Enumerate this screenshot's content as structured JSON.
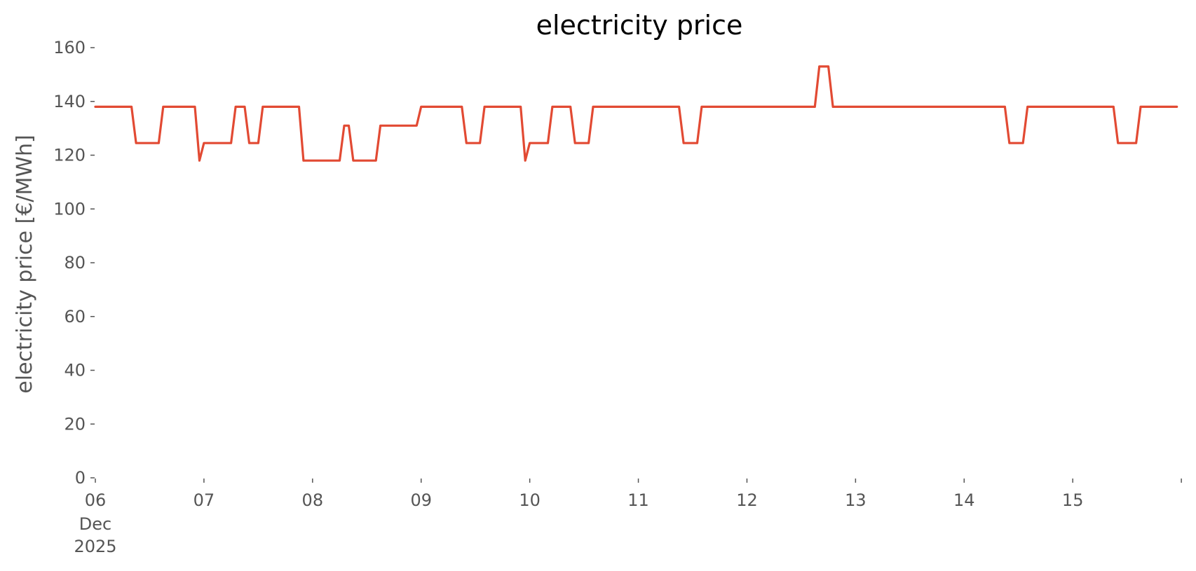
{
  "chart_data": {
    "type": "line",
    "title": "electricity price",
    "xlabel": "",
    "ylabel": "electricity price [€/MWh]",
    "ylim": [
      0,
      160
    ],
    "yticks": [
      0,
      20,
      40,
      60,
      80,
      100,
      120,
      140,
      160
    ],
    "xlim": [
      "2025-12-06 00:00",
      "2025-12-15 23:59"
    ],
    "xticks": [
      {
        "date": "2025-12-06",
        "label": "06",
        "sublabels": [
          "Dec",
          "2025"
        ]
      },
      {
        "date": "2025-12-07",
        "label": "07"
      },
      {
        "date": "2025-12-08",
        "label": "08"
      },
      {
        "date": "2025-12-09",
        "label": "09"
      },
      {
        "date": "2025-12-10",
        "label": "10"
      },
      {
        "date": "2025-12-11",
        "label": "11"
      },
      {
        "date": "2025-12-12",
        "label": "12"
      },
      {
        "date": "2025-12-13",
        "label": "13"
      },
      {
        "date": "2025-12-14",
        "label": "14"
      },
      {
        "date": "2025-12-15",
        "label": "15"
      },
      {
        "date": "2025-12-16",
        "label": ""
      }
    ],
    "grid": false,
    "legend": "none",
    "colors": {
      "line": "#e24a33",
      "text": "#555555",
      "title": "#000000",
      "tick": "#555555"
    },
    "series": [
      {
        "points": [
          [
            "2025-12-06 00:00",
            138
          ],
          [
            "2025-12-06 08:00",
            138
          ],
          [
            "2025-12-06 09:00",
            124.5
          ],
          [
            "2025-12-06 14:00",
            124.5
          ],
          [
            "2025-12-06 15:00",
            138
          ],
          [
            "2025-12-06 22:00",
            138
          ],
          [
            "2025-12-06 23:00",
            118
          ],
          [
            "2025-12-07 00:00",
            124.5
          ],
          [
            "2025-12-07 06:00",
            124.5
          ],
          [
            "2025-12-07 07:00",
            138
          ],
          [
            "2025-12-07 09:00",
            138
          ],
          [
            "2025-12-07 10:00",
            124.5
          ],
          [
            "2025-12-07 12:00",
            124.5
          ],
          [
            "2025-12-07 13:00",
            138
          ],
          [
            "2025-12-07 21:00",
            138
          ],
          [
            "2025-12-07 22:00",
            118
          ],
          [
            "2025-12-08 06:00",
            118
          ],
          [
            "2025-12-08 07:00",
            131
          ],
          [
            "2025-12-08 08:00",
            131
          ],
          [
            "2025-12-08 09:00",
            118
          ],
          [
            "2025-12-08 14:00",
            118
          ],
          [
            "2025-12-08 15:00",
            131
          ],
          [
            "2025-12-08 23:00",
            131
          ],
          [
            "2025-12-09 00:00",
            138
          ],
          [
            "2025-12-09 09:00",
            138
          ],
          [
            "2025-12-09 10:00",
            124.5
          ],
          [
            "2025-12-09 13:00",
            124.5
          ],
          [
            "2025-12-09 14:00",
            138
          ],
          [
            "2025-12-09 22:00",
            138
          ],
          [
            "2025-12-09 23:00",
            118
          ],
          [
            "2025-12-10 00:00",
            124.5
          ],
          [
            "2025-12-10 04:00",
            124.5
          ],
          [
            "2025-12-10 05:00",
            138
          ],
          [
            "2025-12-10 09:00",
            138
          ],
          [
            "2025-12-10 10:00",
            124.5
          ],
          [
            "2025-12-10 13:00",
            124.5
          ],
          [
            "2025-12-10 14:00",
            138
          ],
          [
            "2025-12-11 09:00",
            138
          ],
          [
            "2025-12-11 10:00",
            124.5
          ],
          [
            "2025-12-11 13:00",
            124.5
          ],
          [
            "2025-12-11 14:00",
            138
          ],
          [
            "2025-12-12 15:00",
            138
          ],
          [
            "2025-12-12 16:00",
            153
          ],
          [
            "2025-12-12 18:00",
            153
          ],
          [
            "2025-12-12 19:00",
            138
          ],
          [
            "2025-12-14 09:00",
            138
          ],
          [
            "2025-12-14 10:00",
            124.5
          ],
          [
            "2025-12-14 13:00",
            124.5
          ],
          [
            "2025-12-14 14:00",
            138
          ],
          [
            "2025-12-15 09:00",
            138
          ],
          [
            "2025-12-15 10:00",
            124.5
          ],
          [
            "2025-12-15 14:00",
            124.5
          ],
          [
            "2025-12-15 15:00",
            138
          ],
          [
            "2025-12-15 23:00",
            138
          ]
        ]
      }
    ]
  }
}
